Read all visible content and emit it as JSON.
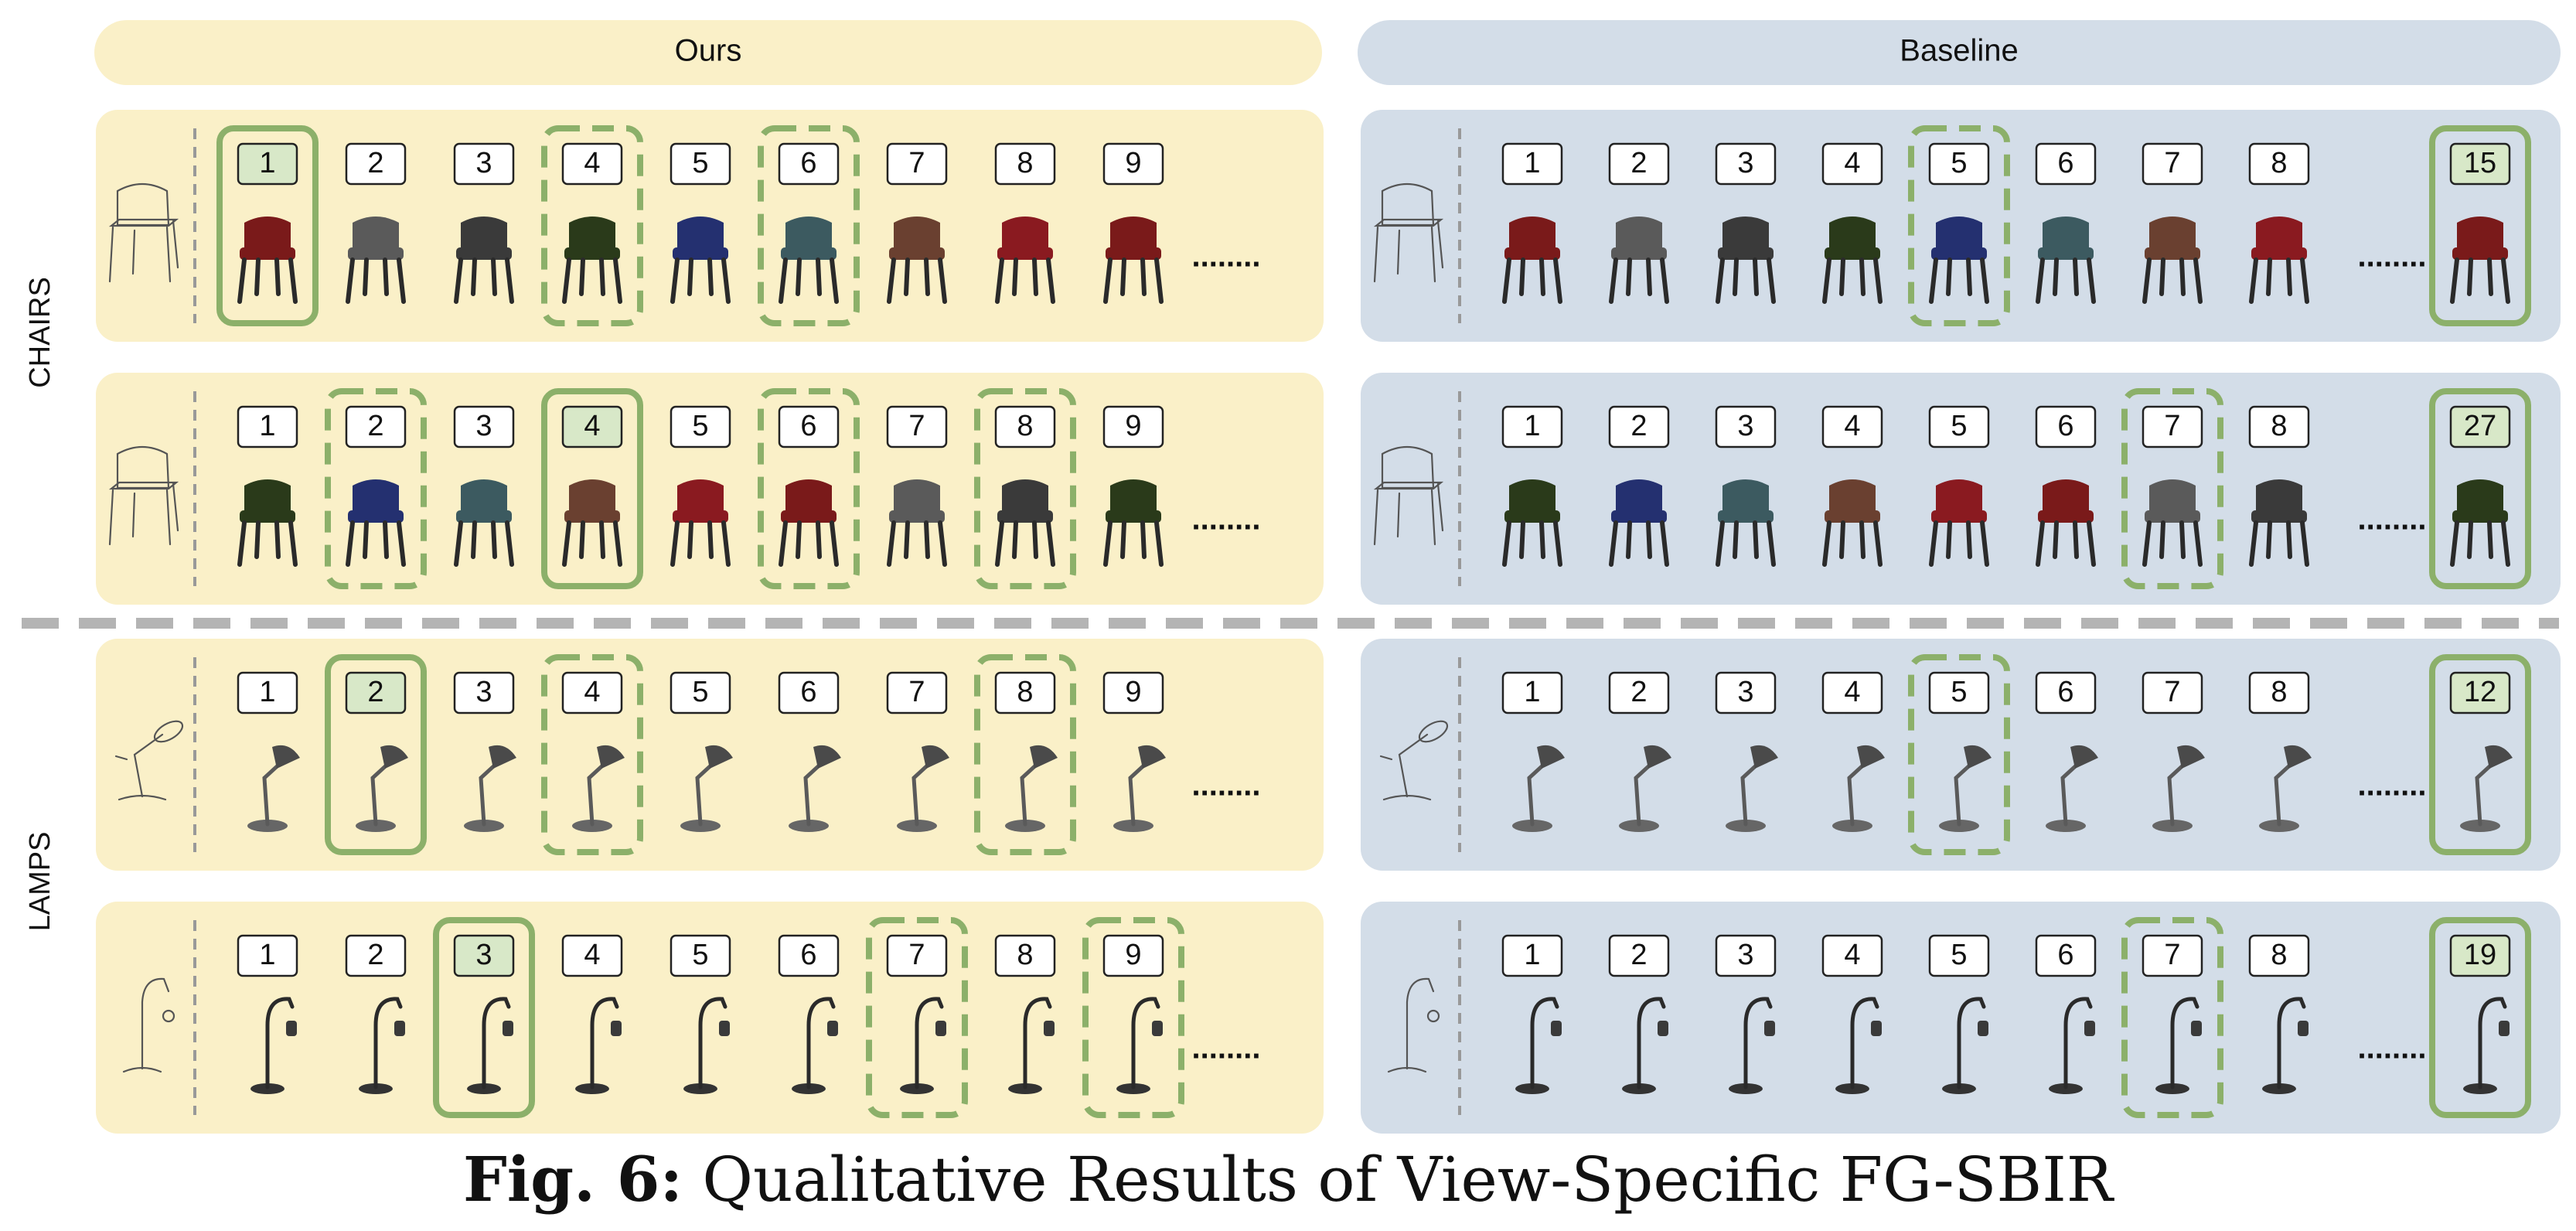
{
  "headers": {
    "ours": "Ours",
    "baseline": "Baseline"
  },
  "categories": [
    "CHAIRS",
    "LAMPS"
  ],
  "colors": {
    "ours_bg": "#faf0c8",
    "baseline_bg": "#d3dde8",
    "highlight": "#8cb06a",
    "number_fill": "#d8e8c8",
    "divider": "#b4b4b4"
  },
  "ellipsis": "........",
  "rows": [
    {
      "category": "CHAIRS",
      "object": "chair",
      "ours": {
        "ranks": [
          "1",
          "2",
          "3",
          "4",
          "5",
          "6",
          "7",
          "8",
          "9"
        ],
        "solid": [
          0
        ],
        "dashed": [
          3,
          5
        ]
      },
      "baseline": {
        "ranks": [
          "1",
          "2",
          "3",
          "4",
          "5",
          "6",
          "7",
          "8",
          "15"
        ],
        "solid": [
          8
        ],
        "dashed": [
          4
        ]
      }
    },
    {
      "category": "CHAIRS",
      "object": "chair",
      "ours": {
        "ranks": [
          "1",
          "2",
          "3",
          "4",
          "5",
          "6",
          "7",
          "8",
          "9"
        ],
        "solid": [
          3
        ],
        "dashed": [
          1,
          5,
          7
        ]
      },
      "baseline": {
        "ranks": [
          "1",
          "2",
          "3",
          "4",
          "5",
          "6",
          "7",
          "8",
          "27"
        ],
        "solid": [
          8
        ],
        "dashed": [
          6
        ]
      }
    },
    {
      "category": "LAMPS",
      "object": "lamp",
      "ours": {
        "ranks": [
          "1",
          "2",
          "3",
          "4",
          "5",
          "6",
          "7",
          "8",
          "9"
        ],
        "solid": [
          1
        ],
        "dashed": [
          3,
          7
        ]
      },
      "baseline": {
        "ranks": [
          "1",
          "2",
          "3",
          "4",
          "5",
          "6",
          "7",
          "8",
          "12"
        ],
        "solid": [
          8
        ],
        "dashed": [
          4
        ]
      }
    },
    {
      "category": "LAMPS",
      "object": "floorlamp",
      "ours": {
        "ranks": [
          "1",
          "2",
          "3",
          "4",
          "5",
          "6",
          "7",
          "8",
          "9"
        ],
        "solid": [
          2
        ],
        "dashed": [
          6,
          8
        ]
      },
      "baseline": {
        "ranks": [
          "1",
          "2",
          "3",
          "4",
          "5",
          "6",
          "7",
          "8",
          "19"
        ],
        "solid": [
          8
        ],
        "dashed": [
          6
        ]
      }
    }
  ],
  "caption": {
    "prefix": "Fig. 6:",
    "text": "Qualitative Results of View-Specific FG-SBIR"
  }
}
